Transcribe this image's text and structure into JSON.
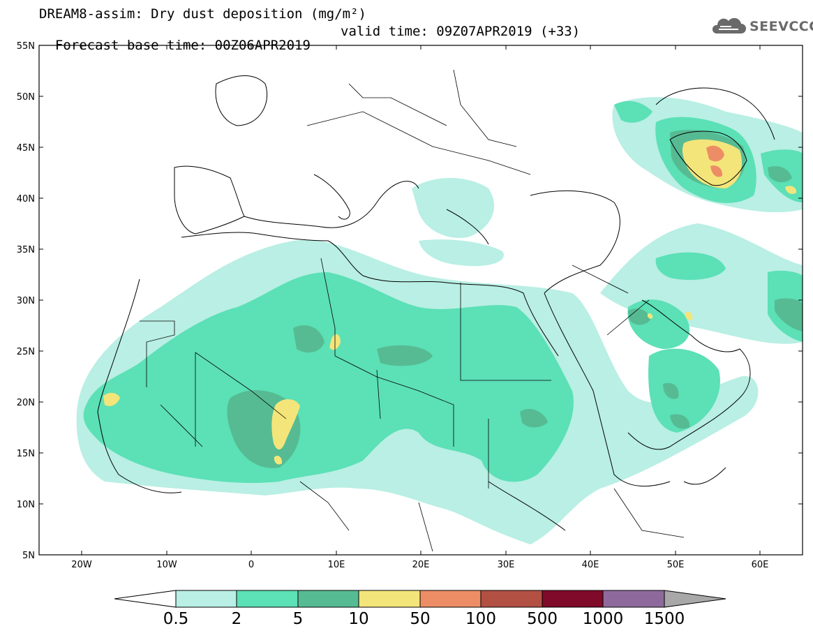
{
  "title": {
    "line1": "DREAM8-assim: Dry dust deposition (mg/m²)",
    "base_time": "Forecast base time: 00Z06APR2019",
    "valid_time": "valid time: 09Z07APR2019 (+33)"
  },
  "logo": {
    "text": "SEEVCCC",
    "icon": "cloud-icon",
    "color": "#6a6a6a"
  },
  "map": {
    "lon_range": [
      -25,
      65
    ],
    "lat_range": [
      5,
      55
    ],
    "lat_ticks": [
      "55N",
      "50N",
      "45N",
      "40N",
      "35N",
      "30N",
      "25N",
      "20N",
      "15N",
      "10N",
      "5N"
    ],
    "lon_ticks": [
      "20W",
      "10W",
      "0",
      "10E",
      "20E",
      "30E",
      "40E",
      "50E",
      "60E"
    ]
  },
  "colorbar": {
    "labels": [
      "0.5",
      "2",
      "5",
      "10",
      "50",
      "100",
      "500",
      "1000",
      "1500"
    ],
    "colors": [
      "#b9efe4",
      "#5ce0b6",
      "#56bb93",
      "#f4e57a",
      "#ed8d66",
      "#b35044",
      "#7f0a2a",
      "#8e6a9c"
    ],
    "under_color": "#ffffff",
    "over_color": "#a8a8a8"
  }
}
